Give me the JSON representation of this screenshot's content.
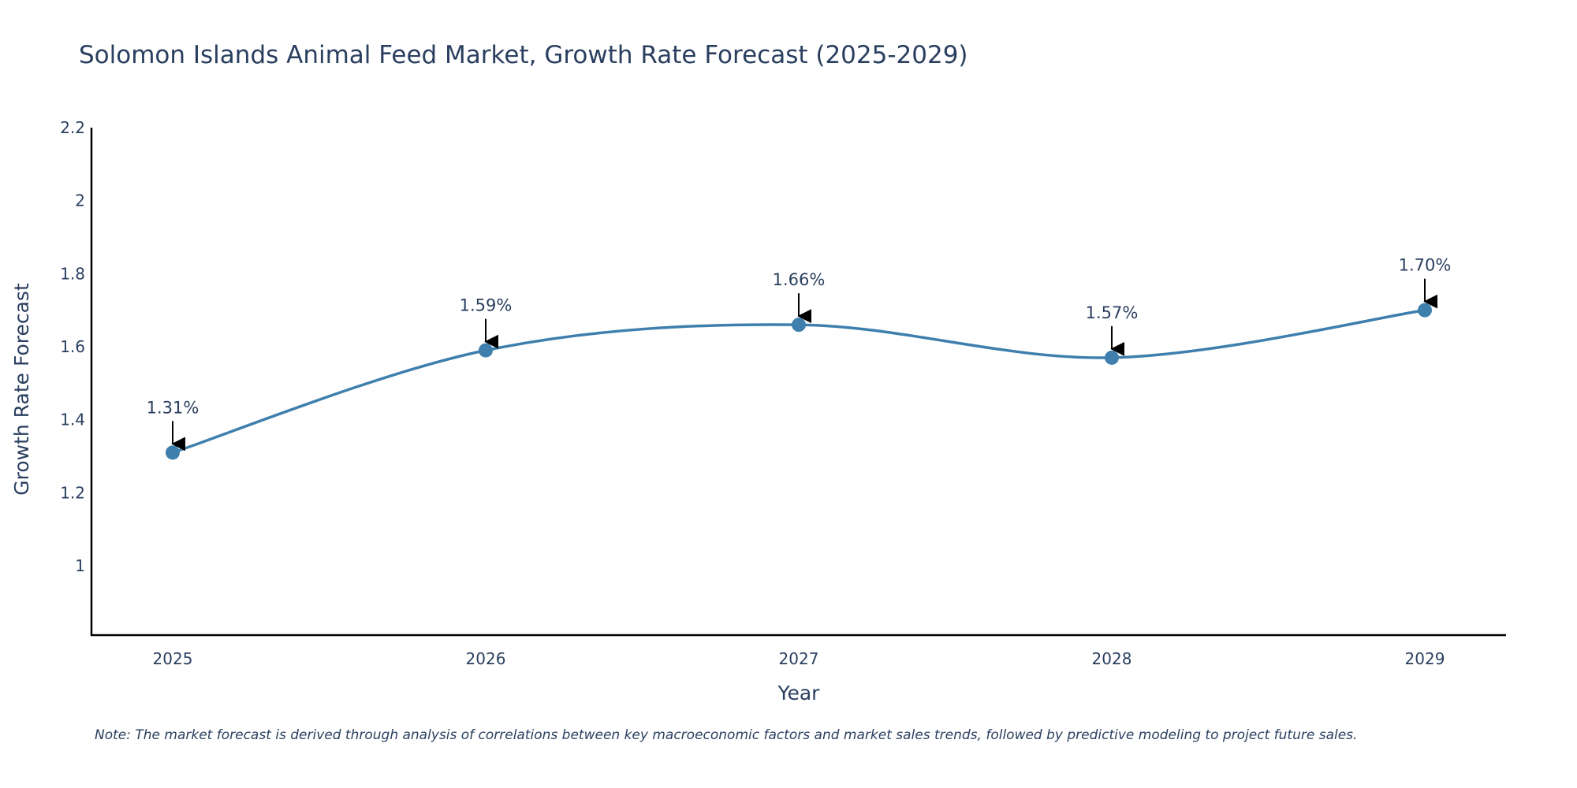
{
  "colors": {
    "series": "#3e7fad",
    "text": "#2a3f5f",
    "axis": "#000000",
    "arrow": "#000000"
  },
  "chart_data": {
    "type": "line",
    "title": "Solomon Islands Animal Feed Market, Growth Rate Forecast (2025-2029)",
    "xlabel": "Year",
    "ylabel": "Growth Rate Forecast",
    "categories": [
      "2025",
      "2026",
      "2027",
      "2028",
      "2029"
    ],
    "series": [
      {
        "name": "Growth Rate Forecast",
        "values": [
          1.31,
          1.59,
          1.66,
          1.57,
          1.7
        ]
      }
    ],
    "data_labels": [
      "1.31%",
      "1.59%",
      "1.66%",
      "1.57%",
      "1.70%"
    ],
    "ylim": [
      0.81,
      2.2
    ],
    "yticks": [
      1,
      1.2,
      1.4,
      1.6,
      1.8,
      2,
      2.2
    ],
    "ytick_labels": [
      "1",
      "1.2",
      "1.4",
      "1.6",
      "1.8",
      "2",
      "2.2"
    ],
    "grid": false,
    "line_shape": "spline",
    "note": "Note: The market forecast is derived through analysis of correlations between key macroeconomic factors and market sales trends, followed by predictive modeling to project future sales."
  }
}
